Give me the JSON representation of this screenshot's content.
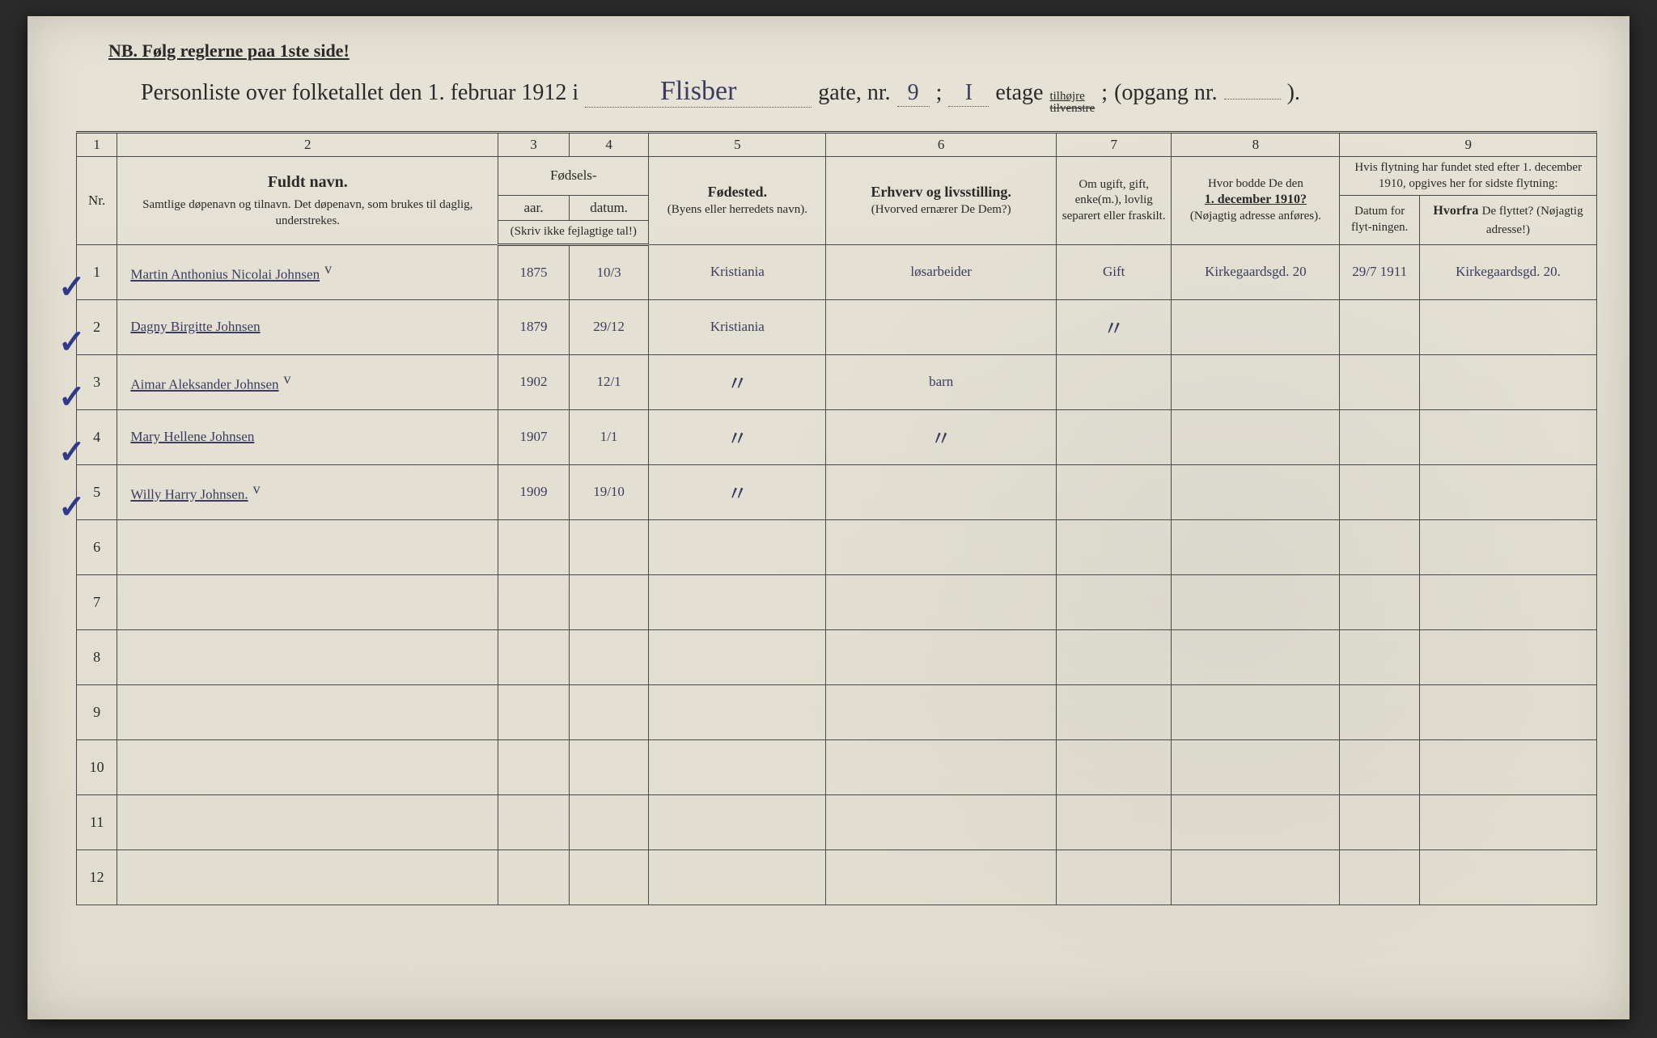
{
  "colors": {
    "paper": "#e8e4d8",
    "ink_print": "#2a2a2a",
    "ink_hand": "#3a3d60",
    "check_blue": "#2f3a8a",
    "border": "#4a4a4a"
  },
  "top_note": "NB.  Følg reglerne paa 1ste side!",
  "title": {
    "prefix": "Personliste over folketallet den 1. februar 1912 i",
    "street_hand": "Flisber",
    "gate_label": "gate, nr.",
    "gate_nr": "9",
    "semicolon1": ";",
    "etage_hand": "I",
    "etage_label": "etage",
    "side_top": "tilhøjre",
    "side_bottom_struck": "tilvenstre",
    "semicolon2": ";",
    "opgang_label": "(opgang nr.",
    "opgang_nr": "",
    "close": ")."
  },
  "column_numbers": [
    "1",
    "2",
    "3",
    "4",
    "5",
    "6",
    "7",
    "8",
    "9"
  ],
  "headers": {
    "nr": "Nr.",
    "name_strong": "Fuldt navn.",
    "name_sub": "Samtlige døpenavn og tilnavn.  Det døpenavn, som brukes til daglig, understrekes.",
    "birth_group": "Fødsels-",
    "year": "aar.",
    "date": "datum.",
    "birth_note": "(Skriv ikke fejlagtige tal!)",
    "birthplace_strong": "Fødested.",
    "birthplace_sub": "(Byens eller herredets navn).",
    "occupation_strong": "Erhverv og livsstilling.",
    "occupation_sub": "(Hvorved ernærer De Dem?)",
    "marital": "Om ugift, gift, enke(m.), lovlig separert eller fraskilt.",
    "prev_addr_line1": "Hvor bodde De den",
    "prev_addr_line2": "1. december 1910?",
    "prev_addr_sub": "(Nøjagtig adresse anføres).",
    "move_top": "Hvis flytning har fundet sted efter 1. december 1910, opgives her for sidste flytning:",
    "move_date": "Datum for flyt-ningen.",
    "move_from_strong": "Hvorfra",
    "move_from_rest": "De flyttet? (Nøjagtig adresse!)"
  },
  "rows": [
    {
      "nr": "1",
      "check": "✓",
      "name": "Martin Anthonius Nicolai Johnsen",
      "name_suffix": "v",
      "year": "1875",
      "date": "10/3",
      "birthplace": "Kristiania",
      "occupation": "løsarbeider",
      "marital": "Gift",
      "prev_addr": "Kirkegaardsgd. 20",
      "move_date": "29/7 1911",
      "move_from": "Kirkegaardsgd. 20."
    },
    {
      "nr": "2",
      "check": "✓",
      "name": "Dagny Birgitte Johnsen",
      "name_suffix": "",
      "year": "1879",
      "date": "29/12",
      "birthplace": "Kristiania",
      "occupation": "",
      "marital": "〃",
      "prev_addr": "",
      "move_date": "",
      "move_from": ""
    },
    {
      "nr": "3",
      "check": "✓",
      "name": "Aimar Aleksander Johnsen",
      "name_suffix": "v",
      "year": "1902",
      "date": "12/1",
      "birthplace": "〃",
      "occupation": "barn",
      "marital": "",
      "prev_addr": "",
      "move_date": "",
      "move_from": ""
    },
    {
      "nr": "4",
      "check": "✓",
      "name": "Mary Hellene Johnsen",
      "name_suffix": "",
      "year": "1907",
      "date": "1/1",
      "birthplace": "〃",
      "occupation": "〃",
      "marital": "",
      "prev_addr": "",
      "move_date": "",
      "move_from": ""
    },
    {
      "nr": "5",
      "check": "✓",
      "name": "Willy Harry Johnsen.",
      "name_suffix": "v",
      "year": "1909",
      "date": "19/10",
      "birthplace": "〃",
      "occupation": "",
      "marital": "",
      "prev_addr": "",
      "move_date": "",
      "move_from": ""
    },
    {
      "nr": "6"
    },
    {
      "nr": "7"
    },
    {
      "nr": "8"
    },
    {
      "nr": "9"
    },
    {
      "nr": "10"
    },
    {
      "nr": "11"
    },
    {
      "nr": "12"
    }
  ]
}
